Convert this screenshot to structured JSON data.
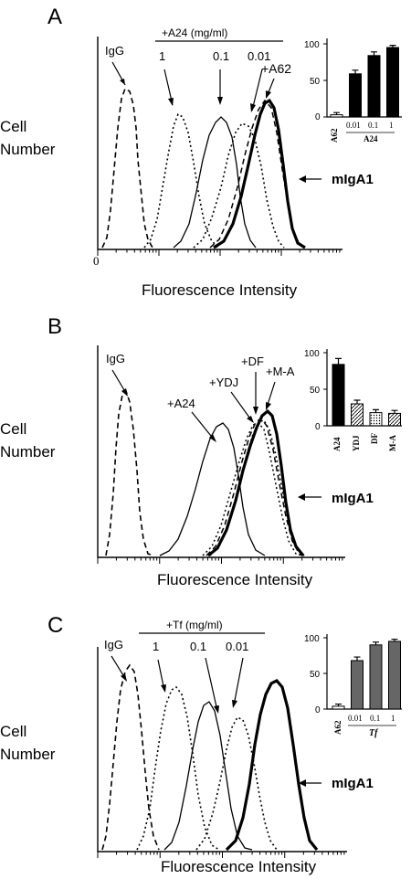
{
  "panels": [
    {
      "letter": "A",
      "ylabel": [
        "Cell",
        "Number"
      ],
      "xlabel": "Fluorescence Intensity",
      "origin": "0",
      "bracket": "+A24 (mg/ml)",
      "labels": [
        "IgG",
        "1",
        "0.1",
        "0.01",
        "+A62",
        "mIgA1"
      ],
      "inset": {
        "yticks": [
          "100",
          "50",
          "0"
        ],
        "cats": [
          "A62",
          "0.01",
          "0.1",
          "1"
        ],
        "group": "A24",
        "values": [
          3,
          59,
          84,
          95
        ],
        "err": [
          3,
          5,
          5,
          3
        ],
        "fills": [
          "white",
          "black",
          "black",
          "black"
        ]
      }
    },
    {
      "letter": "B",
      "ylabel": [
        "Cell",
        "Number"
      ],
      "xlabel": "Fluorescence Intensity",
      "labels": [
        "IgG",
        "+A24",
        "+YDJ",
        "+DF",
        "+M-A",
        "mIgA1"
      ],
      "inset": {
        "yticks": [
          "100",
          "50",
          "0"
        ],
        "cats": [
          "A24",
          "YDJ",
          "DF",
          "M-A"
        ],
        "values": [
          84,
          30,
          18,
          17
        ],
        "err": [
          8,
          5,
          4,
          4
        ],
        "fills": [
          "black",
          "hatch",
          "dots",
          "hatch"
        ]
      }
    },
    {
      "letter": "C",
      "ylabel": [
        "Cell",
        "Number"
      ],
      "xlabel": "Fluorescence Intensity",
      "bracket": "+Tf (mg/ml)",
      "labels": [
        "IgG",
        "1",
        "0.1",
        "0.01",
        "mIgA1"
      ],
      "inset": {
        "yticks": [
          "100",
          "50",
          "0"
        ],
        "cats": [
          "A62",
          "0.01",
          "0.1",
          "1"
        ],
        "group": "Tf",
        "values": [
          4,
          68,
          90,
          95
        ],
        "err": [
          3,
          5,
          4,
          3
        ],
        "fills": [
          "white",
          "gray",
          "gray",
          "gray"
        ]
      }
    }
  ],
  "chart_data": [
    {
      "type": "bar",
      "categories": [
        "A62",
        "0.01",
        "0.1",
        "1"
      ],
      "values": [
        3,
        59,
        84,
        95
      ],
      "ylim": [
        0,
        100
      ]
    },
    {
      "type": "bar",
      "categories": [
        "A24",
        "YDJ",
        "DF",
        "M-A"
      ],
      "values": [
        84,
        30,
        18,
        17
      ],
      "ylim": [
        0,
        100
      ]
    },
    {
      "type": "bar",
      "categories": [
        "A62",
        "0.01",
        "0.1",
        "1"
      ],
      "values": [
        4,
        68,
        90,
        95
      ],
      "ylim": [
        0,
        100
      ]
    }
  ]
}
